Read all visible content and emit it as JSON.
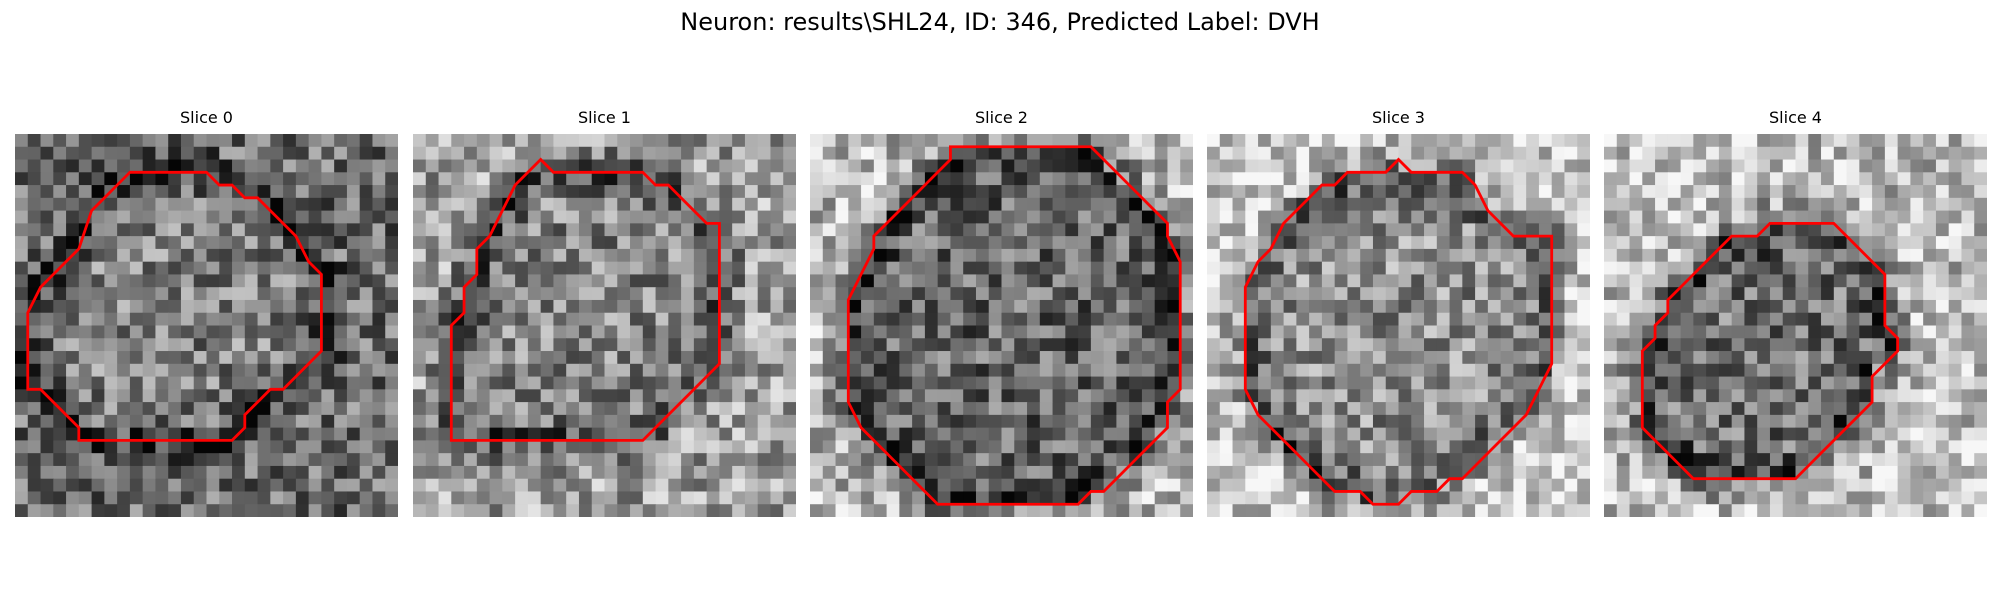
{
  "figure": {
    "title": "Neuron: results\\SHL24, ID: 346, Predicted Label: DVH"
  },
  "contour_color": "#ff0000",
  "slices": [
    {
      "title": "Slice 0",
      "contour": [
        [
          9,
          3
        ],
        [
          15,
          3
        ],
        [
          16,
          4
        ],
        [
          17,
          4
        ],
        [
          18,
          5
        ],
        [
          19,
          5
        ],
        [
          20,
          6
        ],
        [
          21,
          7
        ],
        [
          22,
          8
        ],
        [
          23,
          10
        ],
        [
          24,
          11
        ],
        [
          24,
          17
        ],
        [
          23,
          18
        ],
        [
          22,
          19
        ],
        [
          21,
          20
        ],
        [
          20,
          20
        ],
        [
          19,
          21
        ],
        [
          18,
          22
        ],
        [
          18,
          23
        ],
        [
          17,
          24
        ],
        [
          5,
          24
        ],
        [
          5,
          23
        ],
        [
          4,
          22
        ],
        [
          3,
          21
        ],
        [
          2,
          20
        ],
        [
          1,
          20
        ],
        [
          1,
          14
        ],
        [
          2,
          12
        ],
        [
          3,
          11
        ],
        [
          4,
          10
        ],
        [
          5,
          9
        ],
        [
          6,
          6
        ],
        [
          7,
          5
        ],
        [
          8,
          4
        ]
      ]
    },
    {
      "title": "Slice 1",
      "contour": [
        [
          10,
          2
        ],
        [
          11,
          3
        ],
        [
          18,
          3
        ],
        [
          19,
          4
        ],
        [
          20,
          4
        ],
        [
          21,
          5
        ],
        [
          22,
          6
        ],
        [
          23,
          7
        ],
        [
          24,
          7
        ],
        [
          24,
          18
        ],
        [
          23,
          19
        ],
        [
          22,
          20
        ],
        [
          21,
          21
        ],
        [
          20,
          22
        ],
        [
          19,
          23
        ],
        [
          18,
          24
        ],
        [
          3,
          24
        ],
        [
          3,
          15
        ],
        [
          4,
          14
        ],
        [
          4,
          12
        ],
        [
          5,
          11
        ],
        [
          5,
          9
        ],
        [
          6,
          8
        ],
        [
          7,
          6
        ],
        [
          8,
          4
        ],
        [
          9,
          3
        ]
      ]
    },
    {
      "title": "Slice 2",
      "contour": [
        [
          11,
          1
        ],
        [
          22,
          1
        ],
        [
          23,
          2
        ],
        [
          24,
          3
        ],
        [
          25,
          4
        ],
        [
          26,
          5
        ],
        [
          27,
          6
        ],
        [
          28,
          7
        ],
        [
          28,
          8
        ],
        [
          29,
          10
        ],
        [
          29,
          20
        ],
        [
          28,
          21
        ],
        [
          28,
          23
        ],
        [
          27,
          24
        ],
        [
          26,
          25
        ],
        [
          25,
          26
        ],
        [
          24,
          27
        ],
        [
          23,
          28
        ],
        [
          22,
          28
        ],
        [
          21,
          29
        ],
        [
          10,
          29
        ],
        [
          9,
          28
        ],
        [
          8,
          27
        ],
        [
          7,
          26
        ],
        [
          6,
          25
        ],
        [
          5,
          24
        ],
        [
          4,
          23
        ],
        [
          3,
          21
        ],
        [
          3,
          13
        ],
        [
          4,
          11
        ],
        [
          5,
          9
        ],
        [
          5,
          8
        ],
        [
          6,
          7
        ],
        [
          7,
          6
        ],
        [
          8,
          5
        ],
        [
          9,
          4
        ],
        [
          10,
          3
        ],
        [
          11,
          2
        ]
      ]
    },
    {
      "title": "Slice 3",
      "contour": [
        [
          15,
          2
        ],
        [
          16,
          3
        ],
        [
          20,
          3
        ],
        [
          21,
          4
        ],
        [
          22,
          6
        ],
        [
          23,
          7
        ],
        [
          24,
          8
        ],
        [
          27,
          8
        ],
        [
          27,
          18
        ],
        [
          26,
          20
        ],
        [
          25,
          22
        ],
        [
          24,
          23
        ],
        [
          23,
          24
        ],
        [
          22,
          25
        ],
        [
          21,
          26
        ],
        [
          20,
          27
        ],
        [
          19,
          27
        ],
        [
          18,
          28
        ],
        [
          16,
          28
        ],
        [
          15,
          29
        ],
        [
          13,
          29
        ],
        [
          12,
          28
        ],
        [
          10,
          28
        ],
        [
          9,
          27
        ],
        [
          8,
          26
        ],
        [
          7,
          25
        ],
        [
          6,
          24
        ],
        [
          5,
          23
        ],
        [
          4,
          22
        ],
        [
          3,
          20
        ],
        [
          3,
          12
        ],
        [
          4,
          10
        ],
        [
          5,
          9
        ],
        [
          6,
          7
        ],
        [
          7,
          6
        ],
        [
          8,
          5
        ],
        [
          9,
          4
        ],
        [
          10,
          4
        ],
        [
          11,
          3
        ],
        [
          14,
          3
        ]
      ]
    },
    {
      "title": "Slice 4",
      "contour": [
        [
          13,
          7
        ],
        [
          18,
          7
        ],
        [
          19,
          8
        ],
        [
          20,
          9
        ],
        [
          21,
          10
        ],
        [
          22,
          11
        ],
        [
          22,
          15
        ],
        [
          23,
          16
        ],
        [
          23,
          17
        ],
        [
          22,
          18
        ],
        [
          21,
          19
        ],
        [
          21,
          21
        ],
        [
          20,
          22
        ],
        [
          19,
          23
        ],
        [
          18,
          24
        ],
        [
          17,
          25
        ],
        [
          16,
          26
        ],
        [
          15,
          27
        ],
        [
          7,
          27
        ],
        [
          6,
          26
        ],
        [
          5,
          25
        ],
        [
          4,
          24
        ],
        [
          3,
          23
        ],
        [
          3,
          17
        ],
        [
          4,
          16
        ],
        [
          4,
          15
        ],
        [
          5,
          14
        ],
        [
          5,
          13
        ],
        [
          6,
          12
        ],
        [
          7,
          11
        ],
        [
          8,
          10
        ],
        [
          9,
          9
        ],
        [
          10,
          8
        ],
        [
          12,
          8
        ]
      ]
    }
  ]
}
